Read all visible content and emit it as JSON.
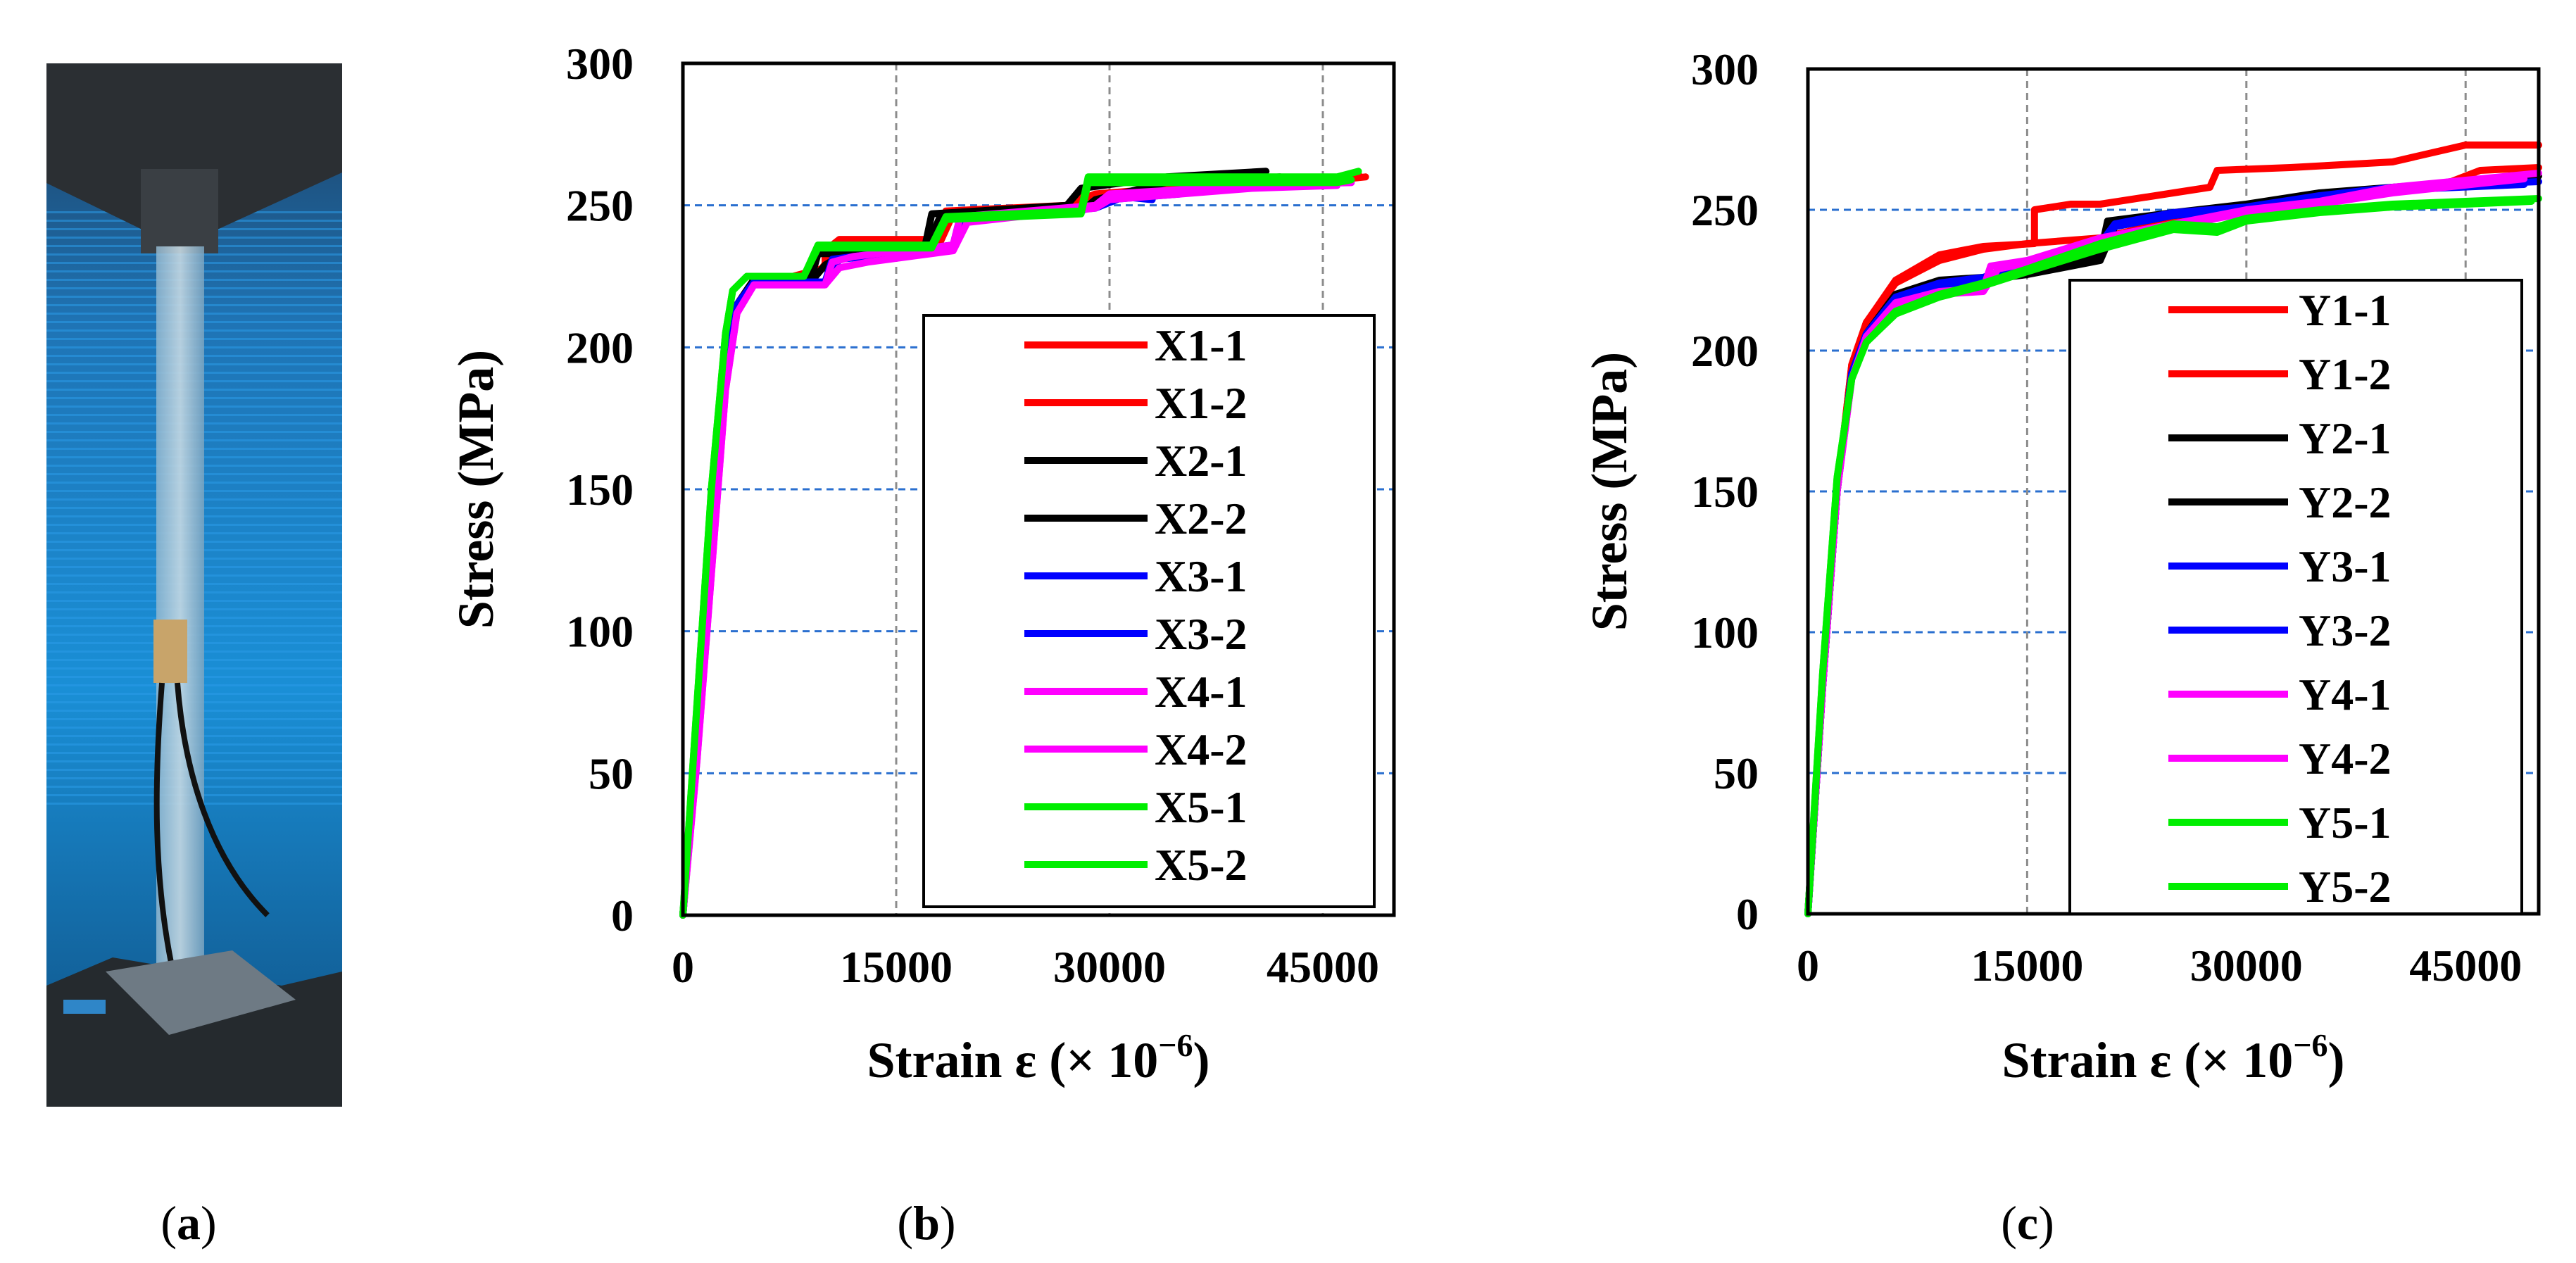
{
  "panel_labels": {
    "a": {
      "open": "(",
      "letter": "a",
      "close": ")"
    },
    "b": {
      "open": "(",
      "letter": "b",
      "close": ")"
    },
    "c": {
      "open": "(",
      "letter": "c",
      "close": ")"
    }
  },
  "photo": {
    "description_icon": "tensile-test-photo-icon"
  },
  "chart_data": [
    {
      "id": "b",
      "type": "line",
      "title": "",
      "xlabel_main": "Strain ε (× 10",
      "xlabel_exp": "−6",
      "xlabel_close": ")",
      "ylabel": "Stress (MPa)",
      "xlim": [
        0,
        50000
      ],
      "ylim": [
        0,
        300
      ],
      "xticks": [
        0,
        15000,
        30000,
        45000
      ],
      "yticks": [
        0,
        50,
        100,
        150,
        200,
        250,
        300
      ],
      "xtick_labels": [
        "0",
        "15000",
        "30000",
        "45000"
      ],
      "ytick_labels": [
        "0",
        "50",
        "100",
        "150",
        "200",
        "250",
        "300"
      ],
      "grid": true,
      "legend_position": "bottom-right",
      "series": [
        {
          "name": "X1-1",
          "color": "#ff0000",
          "x": [
            0,
            1000,
            2000,
            3000,
            3800,
            5000,
            7000,
            10000,
            10000,
            11000,
            18000,
            18500,
            27000,
            28000,
            34000,
            46000,
            48000
          ],
          "y": [
            0,
            60,
            130,
            190,
            215,
            224,
            224,
            228,
            234,
            238,
            238,
            248,
            250,
            253,
            256,
            259,
            260
          ]
        },
        {
          "name": "X1-2",
          "color": "#ff0000",
          "x": [
            0,
            1000,
            2000,
            3000,
            3800,
            5000,
            7000,
            9500,
            11000,
            18000,
            19000,
            27000,
            29000,
            34000,
            46000,
            47500
          ],
          "y": [
            0,
            60,
            130,
            190,
            215,
            223,
            223,
            226,
            236,
            236,
            247,
            250,
            254,
            256,
            259,
            261
          ]
        },
        {
          "name": "X2-1",
          "color": "#000000",
          "x": [
            0,
            1000,
            2000,
            3000,
            3800,
            5000,
            9000,
            9500,
            10500,
            17000,
            17500,
            27000,
            28000,
            34000,
            41000
          ],
          "y": [
            0,
            60,
            130,
            190,
            215,
            224,
            224,
            233,
            233,
            235,
            247,
            250,
            256,
            260,
            262
          ]
        },
        {
          "name": "X2-2",
          "color": "#000000",
          "x": [
            0,
            1000,
            2000,
            3000,
            3800,
            5000,
            9000,
            10000,
            11000,
            17000,
            18000,
            28000,
            29000,
            34000,
            42000
          ],
          "y": [
            0,
            60,
            130,
            190,
            215,
            223,
            223,
            229,
            232,
            233,
            245,
            248,
            252,
            258,
            260
          ]
        },
        {
          "name": "X3-1",
          "color": "#0000ff",
          "x": [
            0,
            1000,
            2000,
            3000,
            3800,
            5000,
            10000,
            10500,
            12000,
            19000,
            19500,
            28000,
            30000,
            35000
          ],
          "y": [
            0,
            60,
            130,
            190,
            215,
            223,
            223,
            231,
            232,
            236,
            246,
            248,
            252,
            254
          ]
        },
        {
          "name": "X3-2",
          "color": "#0000ff",
          "x": [
            0,
            1000,
            2000,
            3000,
            3800,
            5000,
            10000,
            11000,
            13000,
            19000,
            20000,
            29000,
            31000,
            33000
          ],
          "y": [
            0,
            60,
            130,
            190,
            215,
            223,
            223,
            231,
            232,
            236,
            245,
            249,
            253,
            252
          ]
        },
        {
          "name": "X4-1",
          "color": "#ff00ff",
          "x": [
            0,
            1000,
            2000,
            3000,
            3800,
            5000,
            10000,
            10500,
            12000,
            19000,
            19500,
            29000,
            30000,
            40000,
            47000
          ],
          "y": [
            0,
            55,
            120,
            185,
            212,
            222,
            222,
            230,
            232,
            236,
            246,
            250,
            254,
            257,
            258
          ]
        },
        {
          "name": "X4-2",
          "color": "#ff00ff",
          "x": [
            0,
            1000,
            2000,
            3000,
            3800,
            5000,
            10000,
            11000,
            13000,
            19000,
            20000,
            29000,
            30000,
            40000,
            46000
          ],
          "y": [
            0,
            55,
            120,
            185,
            212,
            222,
            222,
            228,
            230,
            234,
            244,
            249,
            252,
            256,
            257
          ]
        },
        {
          "name": "X5-1",
          "color": "#00ee00",
          "x": [
            0,
            1000,
            2000,
            3000,
            3500,
            4500,
            8500,
            9500,
            17500,
            18500,
            28000,
            28500,
            35000,
            46000,
            47500
          ],
          "y": [
            0,
            75,
            150,
            205,
            220,
            225,
            225,
            236,
            236,
            246,
            248,
            260,
            260,
            260,
            262
          ]
        },
        {
          "name": "X5-2",
          "color": "#00ee00",
          "x": [
            0,
            1000,
            2000,
            3000,
            3500,
            4500,
            8500,
            9500,
            17500,
            18500,
            28000,
            28500,
            35000,
            46000,
            47000
          ],
          "y": [
            0,
            75,
            150,
            205,
            220,
            225,
            225,
            235,
            235,
            245,
            247,
            258,
            258,
            258,
            259
          ]
        }
      ]
    },
    {
      "id": "c",
      "type": "line",
      "title": "",
      "xlabel_main": "Strain ε (× 10",
      "xlabel_exp": "−6",
      "xlabel_close": ")",
      "ylabel": "Stress (MPa)",
      "xlim": [
        0,
        50000
      ],
      "ylim": [
        0,
        300
      ],
      "xticks": [
        0,
        15000,
        30000,
        45000
      ],
      "yticks": [
        0,
        50,
        100,
        150,
        200,
        250,
        300
      ],
      "xtick_labels": [
        "0",
        "15000",
        "30000",
        "45000"
      ],
      "ytick_labels": [
        "0",
        "50",
        "100",
        "150",
        "200",
        "250",
        "300"
      ],
      "grid": true,
      "legend_position": "bottom-right",
      "series": [
        {
          "name": "Y1-1",
          "color": "#ff0000",
          "x": [
            0,
            1000,
            2000,
            3000,
            4000,
            6000,
            9000,
            12000,
            15500,
            15500,
            18000,
            20000,
            25000,
            27500,
            28000,
            33000,
            40000,
            45000,
            50000
          ],
          "y": [
            0,
            80,
            150,
            195,
            210,
            225,
            234,
            237,
            238,
            250,
            252,
            252,
            256,
            258,
            264,
            265,
            267,
            273,
            273
          ]
        },
        {
          "name": "Y1-2",
          "color": "#ff0000",
          "x": [
            0,
            1000,
            2000,
            3000,
            4000,
            6000,
            9000,
            12000,
            15000,
            20000,
            25000,
            30000,
            35000,
            40000,
            44000,
            46000,
            50000
          ],
          "y": [
            0,
            80,
            150,
            195,
            210,
            224,
            232,
            236,
            238,
            240,
            246,
            250,
            254,
            257,
            260,
            264,
            265
          ]
        },
        {
          "name": "Y2-1",
          "color": "#000000",
          "x": [
            0,
            1000,
            2000,
            3000,
            4000,
            6000,
            9000,
            12000,
            15000,
            20000,
            20500,
            25000,
            30000,
            35000,
            40000,
            50000
          ],
          "y": [
            0,
            80,
            150,
            192,
            206,
            220,
            225,
            226,
            228,
            234,
            246,
            249,
            252,
            256,
            258,
            262
          ]
        },
        {
          "name": "Y2-2",
          "color": "#000000",
          "x": [
            0,
            1000,
            2000,
            3000,
            4000,
            6000,
            9000,
            12000,
            15000,
            20000,
            21000,
            25000,
            30000,
            35000,
            40000,
            48000
          ],
          "y": [
            0,
            80,
            150,
            192,
            206,
            220,
            224,
            225,
            227,
            232,
            244,
            248,
            250,
            254,
            257,
            260
          ]
        },
        {
          "name": "Y3-1",
          "color": "#0000ff",
          "x": [
            0,
            1000,
            2000,
            3000,
            4000,
            6000,
            9000,
            12000,
            15000,
            20000,
            21000,
            25000,
            30000,
            35000,
            40000,
            50000
          ],
          "y": [
            0,
            80,
            150,
            192,
            206,
            219,
            224,
            226,
            232,
            238,
            245,
            249,
            251,
            255,
            258,
            260
          ]
        },
        {
          "name": "Y3-2",
          "color": "#0000ff",
          "x": [
            0,
            1000,
            2000,
            3000,
            4000,
            6000,
            9000,
            12000,
            15000,
            20000,
            21000,
            25000,
            30000,
            35000,
            40000,
            49000
          ],
          "y": [
            0,
            80,
            150,
            192,
            206,
            218,
            223,
            225,
            231,
            237,
            244,
            248,
            250,
            254,
            257,
            259
          ]
        },
        {
          "name": "Y4-1",
          "color": "#ff00ff",
          "x": [
            0,
            1000,
            2000,
            3000,
            4000,
            6000,
            9000,
            12000,
            12500,
            15000,
            20000,
            25000,
            30000,
            35000,
            40000,
            50000
          ],
          "y": [
            0,
            80,
            150,
            190,
            205,
            217,
            221,
            222,
            230,
            232,
            240,
            245,
            250,
            253,
            258,
            263
          ]
        },
        {
          "name": "Y4-2",
          "color": "#ff00ff",
          "x": [
            0,
            1000,
            2000,
            3000,
            4000,
            6000,
            9000,
            12000,
            13000,
            15000,
            20000,
            25000,
            30000,
            35000,
            40000,
            49000
          ],
          "y": [
            0,
            80,
            150,
            190,
            205,
            216,
            220,
            221,
            229,
            231,
            238,
            244,
            249,
            252,
            256,
            261
          ]
        },
        {
          "name": "Y5-1",
          "color": "#00ee00",
          "x": [
            0,
            1000,
            2000,
            3000,
            4000,
            6000,
            9000,
            12000,
            15000,
            20000,
            25000,
            28000,
            30000,
            35000,
            40000,
            45000,
            50000
          ],
          "y": [
            0,
            85,
            155,
            190,
            203,
            214,
            220,
            224,
            229,
            238,
            245,
            244,
            247,
            250,
            252,
            253,
            254
          ]
        },
        {
          "name": "Y5-2",
          "color": "#00ee00",
          "x": [
            0,
            1000,
            2000,
            3000,
            4000,
            6000,
            9000,
            12000,
            15000,
            20000,
            25000,
            28000,
            30000,
            35000,
            40000,
            45000,
            49500
          ],
          "y": [
            0,
            85,
            155,
            190,
            203,
            213,
            219,
            223,
            228,
            236,
            243,
            242,
            246,
            249,
            251,
            252,
            253
          ]
        }
      ]
    }
  ]
}
